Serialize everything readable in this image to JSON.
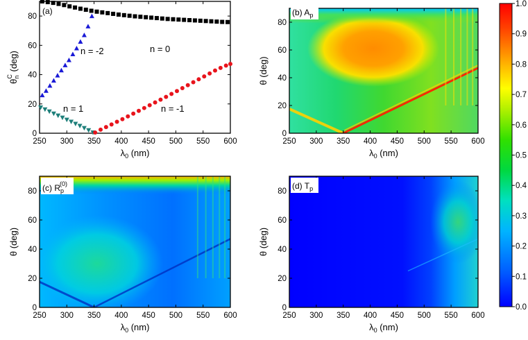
{
  "chart_data": [
    {
      "panel": "a",
      "type": "scatter",
      "label": "(a)",
      "xlabel": "λ0 (nm)",
      "ylabel": "θnC (deg)",
      "xlim": [
        250,
        600
      ],
      "ylim": [
        0,
        90
      ],
      "xticks": [
        250,
        300,
        350,
        400,
        450,
        500,
        550,
        600
      ],
      "yticks": [
        0,
        20,
        40,
        60,
        80
      ],
      "series": [
        {
          "name": "n = 0",
          "marker": "square",
          "color": "#000000",
          "x": [
            255,
            265,
            275,
            285,
            295,
            305,
            315,
            325,
            335,
            345,
            355,
            365,
            375,
            385,
            395,
            405,
            415,
            425,
            435,
            445,
            455,
            465,
            475,
            485,
            495,
            505,
            515,
            525,
            535,
            545,
            555,
            565,
            575,
            585,
            595
          ],
          "y": [
            90,
            89.5,
            89,
            88.3,
            87.5,
            86.6,
            85.8,
            85,
            84.3,
            83.6,
            83,
            82.5,
            82,
            81.5,
            81,
            80.6,
            80.2,
            79.8,
            79.5,
            79.2,
            78.9,
            78.6,
            78.3,
            78,
            77.8,
            77.6,
            77.4,
            77.2,
            77,
            76.8,
            76.6,
            76.4,
            76.2,
            76,
            75.9
          ]
        },
        {
          "name": "n = -2",
          "marker": "triangle-up",
          "color": "#1a1ad6",
          "x": [
            255,
            262,
            269,
            276,
            283,
            290,
            297,
            304,
            311,
            318,
            325,
            332,
            339,
            346
          ],
          "y": [
            26,
            29,
            32.5,
            36,
            39.5,
            43,
            46.5,
            50,
            54,
            58,
            62.5,
            67,
            73,
            80
          ]
        },
        {
          "name": "n = 1",
          "marker": "triangle-down",
          "color": "#1e7f7a",
          "x": [
            252,
            260,
            268,
            276,
            284,
            292,
            300,
            308,
            316,
            324,
            332,
            340,
            348
          ],
          "y": [
            17.5,
            16.2,
            14.8,
            13.4,
            12,
            10.6,
            9.2,
            7.8,
            6.4,
            5,
            3.5,
            2,
            0.5
          ]
        },
        {
          "name": "n = -1",
          "marker": "circle",
          "color": "#e8141c",
          "x": [
            352,
            362,
            372,
            382,
            392,
            402,
            412,
            422,
            432,
            442,
            452,
            462,
            472,
            482,
            492,
            502,
            512,
            522,
            532,
            542,
            552,
            562,
            572,
            582,
            592,
            600
          ],
          "y": [
            0.5,
            2.4,
            4.2,
            6,
            7.8,
            9.6,
            11.5,
            13.4,
            15.3,
            17.2,
            19.1,
            21,
            22.9,
            24.8,
            26.8,
            28.8,
            30.8,
            32.8,
            34.8,
            36.8,
            38.8,
            40.8,
            42.8,
            44.6,
            46.2,
            47.3
          ]
        }
      ],
      "annotations": [
        "n = 0",
        "n = -2",
        "n = 1",
        "n = -1"
      ]
    },
    {
      "panel": "b",
      "type": "heatmap",
      "label": "(b) Ap",
      "xlabel": "λ0 (nm)",
      "ylabel": "θ (deg)",
      "xlim": [
        250,
        600
      ],
      "ylim": [
        0,
        90
      ],
      "xticks": [
        250,
        300,
        350,
        400,
        450,
        500,
        550,
        600
      ],
      "yticks": [
        0,
        20,
        40,
        60,
        80
      ],
      "description_values": {
        "background": 0.5,
        "hotspot_center": [
          450,
          65
        ],
        "hotspot_value": 0.85
      }
    },
    {
      "panel": "c",
      "type": "heatmap",
      "label": "(c) Rp(0)",
      "xlabel": "λ0 (nm)",
      "ylabel": "θ (deg)",
      "xlim": [
        250,
        600
      ],
      "ylim": [
        0,
        90
      ],
      "xticks": [
        250,
        300,
        350,
        400,
        450,
        500,
        550,
        600
      ],
      "yticks": [
        0,
        20,
        40,
        60,
        80
      ],
      "description_values": {
        "background": 0.25,
        "top_band_value": 0.75
      }
    },
    {
      "panel": "d",
      "type": "heatmap",
      "label": "(d) Tp",
      "xlabel": "λ0 (nm)",
      "ylabel": "θ (deg)",
      "xlim": [
        250,
        600
      ],
      "ylim": [
        0,
        90
      ],
      "xticks": [
        250,
        300,
        350,
        400,
        450,
        500,
        550,
        600
      ],
      "yticks": [
        0,
        20,
        40,
        60,
        80
      ],
      "description_values": {
        "background": 0.0,
        "right_region_value": 0.4
      }
    }
  ],
  "colorbar": {
    "ticks": [
      "0.0",
      "0.1",
      "0.2",
      "0.3",
      "0.4",
      "0.5",
      "0.6",
      "0.7",
      "0.8",
      "0.9",
      "1.0"
    ],
    "range": [
      0,
      1
    ],
    "colors": [
      "#0000ff",
      "#0080ff",
      "#00ccff",
      "#00e0b0",
      "#00dd33",
      "#66ee00",
      "#ffff00",
      "#ffa500",
      "#ff3300",
      "#ff0000"
    ]
  }
}
